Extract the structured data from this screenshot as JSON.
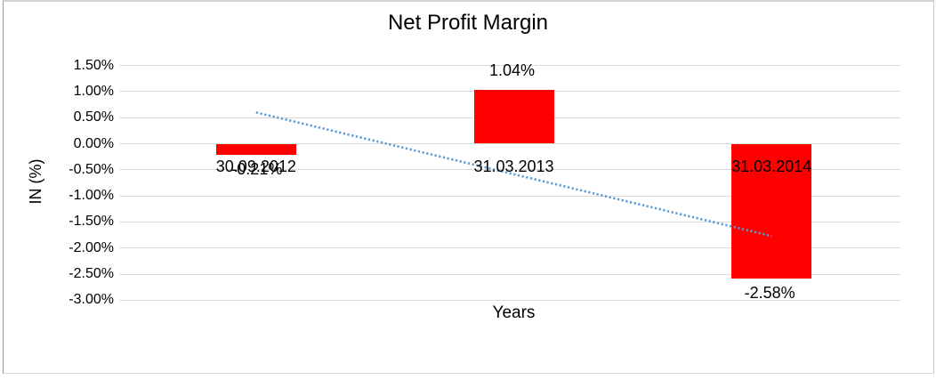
{
  "chart_data": {
    "type": "bar",
    "title": "Net Profit Margin",
    "xlabel": "Years",
    "ylabel": "IN (%)",
    "categories": [
      "30.09.2012",
      "31.03.2013",
      "31.03.2014"
    ],
    "values": [
      -0.21,
      1.04,
      -2.58
    ],
    "data_labels": [
      "-0.21%",
      "1.04%",
      "-2.58%"
    ],
    "y_ticks": [
      {
        "label": "1.50%",
        "value": 1.5
      },
      {
        "label": "1.00%",
        "value": 1.0
      },
      {
        "label": "0.50%",
        "value": 0.5
      },
      {
        "label": "0.00%",
        "value": 0.0
      },
      {
        "label": "-0.50%",
        "value": -0.5
      },
      {
        "label": "-1.00%",
        "value": -1.0
      },
      {
        "label": "-1.50%",
        "value": -1.5
      },
      {
        "label": "-2.00%",
        "value": -2.0
      },
      {
        "label": "-2.50%",
        "value": -2.5
      },
      {
        "label": "-3.00%",
        "value": -3.0
      }
    ],
    "ylim": [
      -3.0,
      1.5
    ],
    "grid": true,
    "legend": false,
    "trendline": {
      "type": "linear",
      "style": "dotted",
      "start_pct": 0.6,
      "end_pct": -1.77
    }
  },
  "colors": {
    "bar": "#ff0000",
    "gridline": "#d9d9d9",
    "trendline": "#5b9bd5",
    "text": "#000000",
    "frame": "#c9c9c9"
  }
}
